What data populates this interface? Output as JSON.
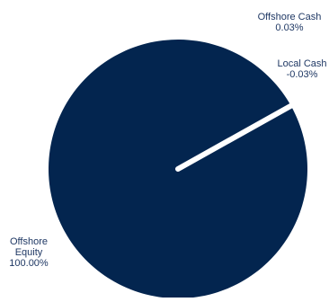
{
  "chart_data": {
    "type": "pie",
    "slices": [
      {
        "label": "Offshore Equity",
        "value_label": "100.00%",
        "value": 100.0,
        "color": "#03254f"
      },
      {
        "label": "Offshore Cash",
        "value_label": "0.03%",
        "value": 0.03,
        "color": "#03254f"
      },
      {
        "label": "Local Cash",
        "value_label": "-0.03%",
        "value": -0.03,
        "color": "#03254f"
      }
    ],
    "title": "",
    "label_color": "#1f3864",
    "separator_color": "#ffffff"
  }
}
